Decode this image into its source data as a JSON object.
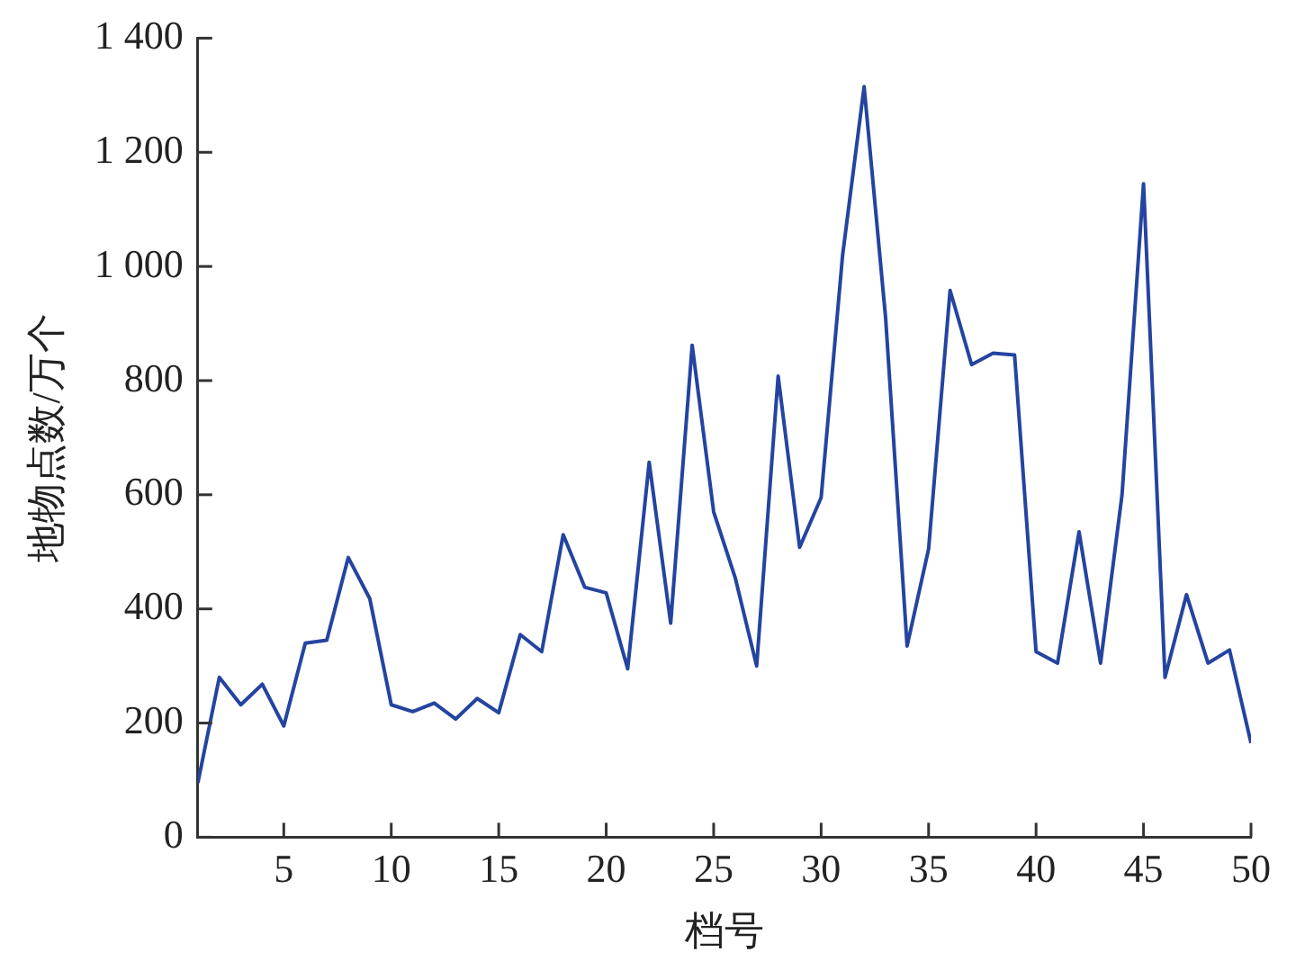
{
  "chart_data": {
    "type": "line",
    "xlabel": "档号",
    "ylabel": "地物点数/万个",
    "x": [
      1,
      2,
      3,
      4,
      5,
      6,
      7,
      8,
      9,
      10,
      11,
      12,
      13,
      14,
      15,
      16,
      17,
      18,
      19,
      20,
      21,
      22,
      23,
      24,
      25,
      26,
      27,
      28,
      29,
      30,
      31,
      32,
      33,
      34,
      35,
      36,
      37,
      38,
      39,
      40,
      41,
      42,
      43,
      44,
      45,
      46,
      47,
      48,
      49,
      50
    ],
    "series": [
      {
        "color": "#2444a0",
        "values": [
          95,
          280,
          232,
          268,
          195,
          340,
          345,
          490,
          418,
          232,
          220,
          235,
          207,
          243,
          218,
          355,
          325,
          530,
          438,
          428,
          295,
          657,
          375,
          862,
          570,
          455,
          300,
          808,
          508,
          595,
          1020,
          1315,
          910,
          335,
          505,
          958,
          828,
          848,
          845,
          325,
          305,
          535,
          305,
          600,
          1145,
          280,
          425,
          305,
          328,
          165
        ]
      }
    ],
    "xlim": [
      1,
      50
    ],
    "xticks": [
      5,
      10,
      15,
      20,
      25,
      30,
      35,
      40,
      45,
      50
    ],
    "ylim": [
      0,
      1400
    ],
    "yticks": [
      0,
      200,
      400,
      600,
      800,
      {
        "value": 1000,
        "label": "1 000"
      },
      {
        "value": 1200,
        "label": "1 200"
      },
      {
        "value": 1400,
        "label": "1 400"
      }
    ],
    "grid": false,
    "legend": false,
    "marker": "none",
    "line_style": "solid"
  }
}
